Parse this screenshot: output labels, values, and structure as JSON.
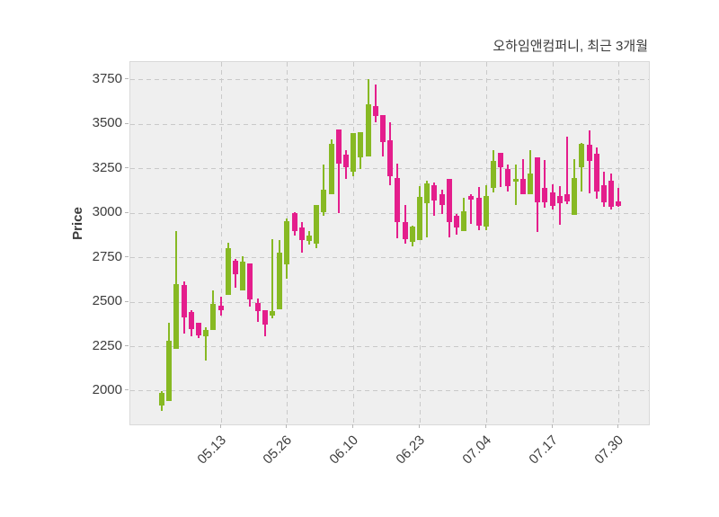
{
  "title": "오하임앤컴퍼니, 최근 3개월",
  "y_axis": {
    "label": "Price",
    "ticks": [
      2000,
      2250,
      2500,
      2750,
      3000,
      3250,
      3500,
      3750
    ]
  },
  "x_axis": {
    "tick_labels": [
      "05.13",
      "05.26",
      "06.10",
      "06.23",
      "07.04",
      "07.17",
      "07.30"
    ],
    "tick_indices": [
      8,
      17,
      26,
      35,
      44,
      53,
      62
    ]
  },
  "colors": {
    "up": "#87b923",
    "down": "#e41e8c",
    "plot_bg": "#efefef",
    "grid": "#c9c9c9",
    "text": "#3a3a3a",
    "page_bg": "#ffffff"
  },
  "chart_data": {
    "type": "candlestick",
    "title": "오하임앤컴퍼니, 최근 3개월",
    "xlabel": "",
    "ylabel": "Price",
    "ylim": [
      1810,
      3848
    ],
    "grid": true,
    "grid_style": "dashed",
    "legend": "none",
    "x_tick_labels": [
      "05.13",
      "05.26",
      "06.10",
      "06.23",
      "07.04",
      "07.17",
      "07.30"
    ],
    "x_tick_indices": [
      8,
      17,
      26,
      35,
      44,
      53,
      62
    ],
    "y_ticks": [
      2000,
      2250,
      2500,
      2750,
      3000,
      3250,
      3500,
      3750
    ],
    "series_format": "[open, high, low, close] per trading day; up if close >= open",
    "candles": [
      [
        1915,
        1995,
        1885,
        1985
      ],
      [
        1940,
        2380,
        1940,
        2280
      ],
      [
        2235,
        2895,
        2235,
        2600
      ],
      [
        2595,
        2615,
        2320,
        2410
      ],
      [
        2440,
        2455,
        2305,
        2345
      ],
      [
        2380,
        2380,
        2295,
        2310
      ],
      [
        2305,
        2355,
        2170,
        2340
      ],
      [
        2340,
        2565,
        2340,
        2490
      ],
      [
        2480,
        2530,
        2420,
        2450
      ],
      [
        2540,
        2830,
        2540,
        2800
      ],
      [
        2730,
        2740,
        2580,
        2655
      ],
      [
        2565,
        2755,
        2565,
        2725
      ],
      [
        2715,
        2715,
        2470,
        2515
      ],
      [
        2495,
        2520,
        2385,
        2445
      ],
      [
        2455,
        2455,
        2305,
        2370
      ],
      [
        2420,
        2850,
        2405,
        2445
      ],
      [
        2455,
        2845,
        2455,
        2775
      ],
      [
        2710,
        2970,
        2630,
        2955
      ],
      [
        3000,
        3005,
        2870,
        2895
      ],
      [
        2920,
        2950,
        2775,
        2845
      ],
      [
        2840,
        2895,
        2820,
        2870
      ],
      [
        2825,
        3045,
        2800,
        3045
      ],
      [
        3005,
        3270,
        2985,
        3130
      ],
      [
        3105,
        3415,
        3105,
        3390
      ],
      [
        3470,
        3470,
        3000,
        3275
      ],
      [
        3325,
        3355,
        3190,
        3255
      ],
      [
        3230,
        3450,
        3205,
        3450
      ],
      [
        3310,
        3455,
        3245,
        3455
      ],
      [
        3315,
        3750,
        3315,
        3610
      ],
      [
        3600,
        3720,
        3510,
        3545
      ],
      [
        3550,
        3550,
        3315,
        3400
      ],
      [
        3410,
        3510,
        3155,
        3205
      ],
      [
        3195,
        3275,
        2855,
        2945
      ],
      [
        2950,
        3045,
        2825,
        2850
      ],
      [
        2835,
        2930,
        2810,
        2925
      ],
      [
        2845,
        3150,
        2845,
        3090
      ],
      [
        3055,
        3180,
        2860,
        3165
      ],
      [
        3155,
        3170,
        2985,
        3070
      ],
      [
        3105,
        3130,
        2995,
        3045
      ],
      [
        3190,
        3190,
        2860,
        2950
      ],
      [
        2985,
        2995,
        2875,
        2920
      ],
      [
        2895,
        3085,
        2895,
        3010
      ],
      [
        3095,
        3105,
        2935,
        3075
      ],
      [
        3085,
        3145,
        2900,
        2930
      ],
      [
        2920,
        3155,
        2900,
        3095
      ],
      [
        3140,
        3355,
        3115,
        3290
      ],
      [
        3335,
        3335,
        3145,
        3255
      ],
      [
        3245,
        3270,
        3120,
        3150
      ],
      [
        3175,
        3270,
        3045,
        3190
      ],
      [
        3190,
        3300,
        3105,
        3105
      ],
      [
        3105,
        3355,
        3105,
        3220
      ],
      [
        3310,
        3310,
        2890,
        3060
      ],
      [
        3140,
        3295,
        3030,
        3060
      ],
      [
        3115,
        3160,
        3020,
        3040
      ],
      [
        3095,
        3150,
        2935,
        3055
      ],
      [
        3105,
        3430,
        3050,
        3065
      ],
      [
        2990,
        3300,
        2990,
        3195
      ],
      [
        3255,
        3395,
        3120,
        3390
      ],
      [
        3385,
        3465,
        3110,
        3290
      ],
      [
        3330,
        3370,
        3080,
        3120
      ],
      [
        3155,
        3230,
        3035,
        3060
      ],
      [
        3180,
        3220,
        3020,
        3035
      ],
      [
        3065,
        3140,
        3035,
        3040
      ]
    ]
  }
}
